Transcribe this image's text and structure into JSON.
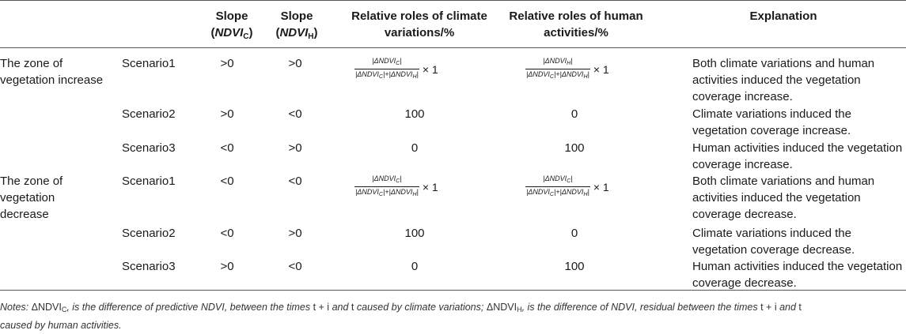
{
  "headers": {
    "slope": "Slope",
    "slope_c_var": "NDVI",
    "slope_c_sub": "C",
    "slope_h_var": "NDVI",
    "slope_h_sub": "H",
    "climate": "Relative roles of climate variations/%",
    "human": "Relative roles of human activities/%",
    "explanation": "Explanation"
  },
  "zones": [
    {
      "label": "The zone of vegetation increase",
      "rows": [
        {
          "scenario": "Scenario1",
          "slope_c": ">0",
          "slope_h": ">0",
          "climate": "formula",
          "human": "formula",
          "explanation": "Both climate variations and human activities induced the vegetation coverage increase."
        },
        {
          "scenario": "Scenario2",
          "slope_c": ">0",
          "slope_h": "<0",
          "climate": "100",
          "human": "0",
          "explanation": "Climate variations induced the vegetation coverage increase."
        },
        {
          "scenario": "Scenario3",
          "slope_c": "<0",
          "slope_h": ">0",
          "climate": "0",
          "human": "100",
          "explanation": "Human activities induced the vegetation coverage increase."
        }
      ]
    },
    {
      "label": "The zone of vegetation decrease",
      "rows": [
        {
          "scenario": "Scenario1",
          "slope_c": "<0",
          "slope_h": "<0",
          "climate": "formula",
          "human": "formula",
          "explanation": "Both climate variations and human activities induced the vegetation coverage decrease."
        },
        {
          "scenario": "Scenario2",
          "slope_c": "<0",
          "slope_h": ">0",
          "climate": "100",
          "human": "0",
          "explanation": "Climate variations induced the vegetation coverage decrease."
        },
        {
          "scenario": "Scenario3",
          "slope_c": ">0",
          "slope_h": "<0",
          "climate": "0",
          "human": "100",
          "explanation": "Human activities induced the vegetation coverage decrease."
        }
      ]
    }
  ],
  "formulas": {
    "climate_num": "|ΔNDVI",
    "climate_num_sub": "C",
    "human_num_sub": "H",
    "den_a": "|ΔNDVI",
    "den_a_sub": "C",
    "den_b": "|+|ΔNDVI",
    "den_b_sub": "H",
    "den_end": "|",
    "num_end": "|",
    "times": "× 1",
    "decrease_human_num_sub": "C"
  },
  "notes": {
    "lead": "Notes: ",
    "d1": "ΔNDVI",
    "d1_sub": "C",
    "t1": ", is the difference of predictive NDVI, between the times ",
    "time_a": "t + i",
    "and1": " and ",
    "time_b": "t",
    "t2": " caused by climate variations; ",
    "d2": "ΔNDVI",
    "d2_sub": "H",
    "t3": ", is the difference of NDVI, residual between the times ",
    "time_c": "t + i",
    "and2": " and ",
    "time_d": "t",
    "t4": "caused by human activities."
  }
}
